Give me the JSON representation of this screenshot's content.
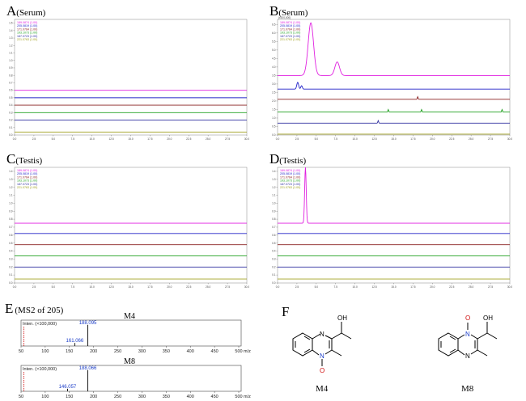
{
  "chart_data": [
    {
      "type": "line",
      "id": "A",
      "panel_letter": "A",
      "panel_sub": "(Serum)",
      "header": "",
      "xlim": [
        0,
        30
      ],
      "x_ticks": [
        "0.0",
        "2.5",
        "5.0",
        "7.5",
        "10.0",
        "12.5",
        "15.0",
        "17.5",
        "20.0",
        "22.5",
        "25.0",
        "27.5",
        "30.0"
      ],
      "y_ticks": [
        "0.0",
        "0.1",
        "0.2",
        "0.3",
        "0.4",
        "0.5",
        "0.6",
        "0.7",
        "0.8",
        "0.9",
        "1.0",
        "1.1",
        "1.2",
        "1.3",
        "1.4",
        "1.5"
      ],
      "ylim": [
        0,
        1.55
      ],
      "series": [
        {
          "legend": "189.0874 (1.00)",
          "color": "#e020e0",
          "baseline": 0.6,
          "peaks": []
        },
        {
          "legend": "205.0819 (1.00)",
          "color": "#2020c8",
          "baseline": 0.5,
          "peaks": []
        },
        {
          "legend": "171.0764 (1.00)",
          "color": "#8a2020",
          "baseline": 0.4,
          "peaks": []
        },
        {
          "legend": "193.1073 (1.00)",
          "color": "#20a020",
          "baseline": 0.3,
          "peaks": []
        },
        {
          "legend": "187.0723 (1.00)",
          "color": "#3030a0",
          "baseline": 0.2,
          "peaks": []
        },
        {
          "legend": "221.0763 (1.00)",
          "color": "#a0a020",
          "baseline": 0.04,
          "peaks": []
        }
      ]
    },
    {
      "type": "line",
      "id": "B",
      "panel_letter": "B",
      "panel_sub": "(Serum)",
      "header": "(x100,000)",
      "xlim": [
        0,
        30
      ],
      "x_ticks": [
        "0.0",
        "2.5",
        "5.0",
        "7.5",
        "10.0",
        "12.5",
        "15.0",
        "17.5",
        "20.0",
        "22.5",
        "25.0",
        "27.5",
        "30.0"
      ],
      "y_ticks": [
        "0.0",
        "0.5",
        "1.0",
        "1.5",
        "2.0",
        "2.5",
        "3.0",
        "3.5",
        "4.0",
        "4.5",
        "5.0",
        "5.5",
        "6.0",
        "6.5"
      ],
      "ylim": [
        0,
        6.8
      ],
      "series": [
        {
          "legend": "189.0874 (1.00)",
          "color": "#e020e0",
          "baseline": 3.5,
          "peaks": [
            [
              4.3,
              6.6,
              0.35
            ],
            [
              7.7,
              4.3,
              0.3
            ]
          ]
        },
        {
          "legend": "205.0819 (1.00)",
          "color": "#2020c8",
          "baseline": 2.7,
          "peaks": [
            [
              2.6,
              3.1,
              0.12
            ],
            [
              3.1,
              2.9,
              0.1
            ]
          ]
        },
        {
          "legend": "171.0764 (1.00)",
          "color": "#8a2020",
          "baseline": 2.1,
          "peaks": [
            [
              18.1,
              2.25,
              0.05
            ]
          ]
        },
        {
          "legend": "193.1073 (1.00)",
          "color": "#20a020",
          "baseline": 1.35,
          "peaks": [
            [
              14.3,
              1.5,
              0.05
            ],
            [
              18.6,
              1.5,
              0.05
            ],
            [
              29.0,
              1.5,
              0.05
            ]
          ]
        },
        {
          "legend": "187.0723 (1.00)",
          "color": "#3030a0",
          "baseline": 0.7,
          "peaks": [
            [
              13.0,
              0.85,
              0.05
            ]
          ]
        },
        {
          "legend": "221.0763 (1.00)",
          "color": "#a0a020",
          "baseline": 0.05,
          "peaks": []
        }
      ]
    },
    {
      "type": "line",
      "id": "C",
      "panel_letter": "C",
      "panel_sub": "(Testis)",
      "header": "",
      "xlim": [
        0,
        30
      ],
      "x_ticks": [
        "0.0",
        "2.5",
        "5.0",
        "7.5",
        "10.0",
        "12.5",
        "15.0",
        "17.5",
        "20.0",
        "22.5",
        "25.0",
        "27.5",
        "30.0"
      ],
      "y_ticks": [
        "0.0",
        "0.1",
        "0.2",
        "0.3",
        "0.4",
        "0.5",
        "0.6",
        "0.7",
        "0.8",
        "0.9",
        "1.0",
        "1.1",
        "1.2",
        "1.3",
        "1.4"
      ],
      "ylim": [
        0,
        1.45
      ],
      "series": [
        {
          "legend": "189.0874 (1.00)",
          "color": "#e020e0",
          "baseline": 0.75,
          "peaks": []
        },
        {
          "legend": "205.0819 (1.00)",
          "color": "#2020c8",
          "baseline": 0.62,
          "peaks": []
        },
        {
          "legend": "171.0764 (1.00)",
          "color": "#8a2020",
          "baseline": 0.48,
          "peaks": []
        },
        {
          "legend": "193.1073 (1.00)",
          "color": "#20a020",
          "baseline": 0.34,
          "peaks": []
        },
        {
          "legend": "187.0723 (1.00)",
          "color": "#3030a0",
          "baseline": 0.2,
          "peaks": []
        },
        {
          "legend": "221.0763 (1.00)",
          "color": "#a0a020",
          "baseline": 0.05,
          "peaks": []
        }
      ]
    },
    {
      "type": "line",
      "id": "D",
      "panel_letter": "D",
      "panel_sub": "(Testis)",
      "header": "",
      "xlim": [
        0,
        30
      ],
      "x_ticks": [
        "0.0",
        "2.5",
        "5.0",
        "7.5",
        "10.0",
        "12.5",
        "15.0",
        "17.5",
        "20.0",
        "22.5",
        "25.0",
        "27.5",
        "30.0"
      ],
      "y_ticks": [
        "0.0",
        "0.1",
        "0.2",
        "0.3",
        "0.4",
        "0.5",
        "0.6",
        "0.7",
        "0.8",
        "0.9",
        "1.0",
        "1.1",
        "1.2",
        "1.3",
        "1.4"
      ],
      "ylim": [
        0,
        1.45
      ],
      "series": [
        {
          "legend": "189.0874 (1.00)",
          "color": "#e020e0",
          "baseline": 0.75,
          "peaks": [
            [
              3.6,
              1.45,
              0.1
            ]
          ]
        },
        {
          "legend": "205.0819 (1.00)",
          "color": "#2020c8",
          "baseline": 0.62,
          "peaks": []
        },
        {
          "legend": "171.0764 (1.00)",
          "color": "#8a2020",
          "baseline": 0.48,
          "peaks": []
        },
        {
          "legend": "193.1073 (1.00)",
          "color": "#20a020",
          "baseline": 0.34,
          "peaks": []
        },
        {
          "legend": "187.0723 (1.00)",
          "color": "#3030a0",
          "baseline": 0.2,
          "peaks": []
        },
        {
          "legend": "221.0763 (1.00)",
          "color": "#a0a020",
          "baseline": 0.05,
          "peaks": []
        }
      ]
    },
    {
      "type": "bar",
      "id": "M4",
      "title": "M4",
      "intensity_label": "Inten. (×100,000)",
      "xlabel": "m/z",
      "xlim": [
        50,
        505
      ],
      "x_ticks": [
        "50",
        "100",
        "150",
        "200",
        "250",
        "300",
        "350",
        "400",
        "450",
        "500"
      ],
      "peaks": [
        {
          "mz": 188.095,
          "label": "188.095",
          "rel": 0.82
        },
        {
          "mz": 161.066,
          "label": "161.066",
          "rel": 0.12
        }
      ],
      "precursor_mz": 56
    },
    {
      "type": "bar",
      "id": "M8",
      "title": "M8",
      "intensity_label": "Inten. (×100,000)",
      "xlabel": "m/z",
      "xlim": [
        50,
        505
      ],
      "x_ticks": [
        "50",
        "100",
        "150",
        "200",
        "250",
        "300",
        "350",
        "400",
        "450",
        "500"
      ],
      "peaks": [
        {
          "mz": 188.066,
          "label": "188.066",
          "rel": 0.82
        },
        {
          "mz": 146.057,
          "label": "146.057",
          "rel": 0.1
        }
      ],
      "precursor_mz": 56
    }
  ],
  "panel_e": {
    "letter": "E",
    "sub": "(MS2 of 205)"
  },
  "panel_f": {
    "letter": "F"
  },
  "structures": [
    {
      "id": "M4",
      "label": "M4",
      "oh": "OH",
      "n_top": "",
      "n_bottom": "N",
      "o_bottom": "O",
      "n_top_plain": "N"
    },
    {
      "id": "M8",
      "label": "M8",
      "oh": "OH",
      "n_top": "N",
      "o_top": "O",
      "n_bottom_plain": "N"
    }
  ]
}
